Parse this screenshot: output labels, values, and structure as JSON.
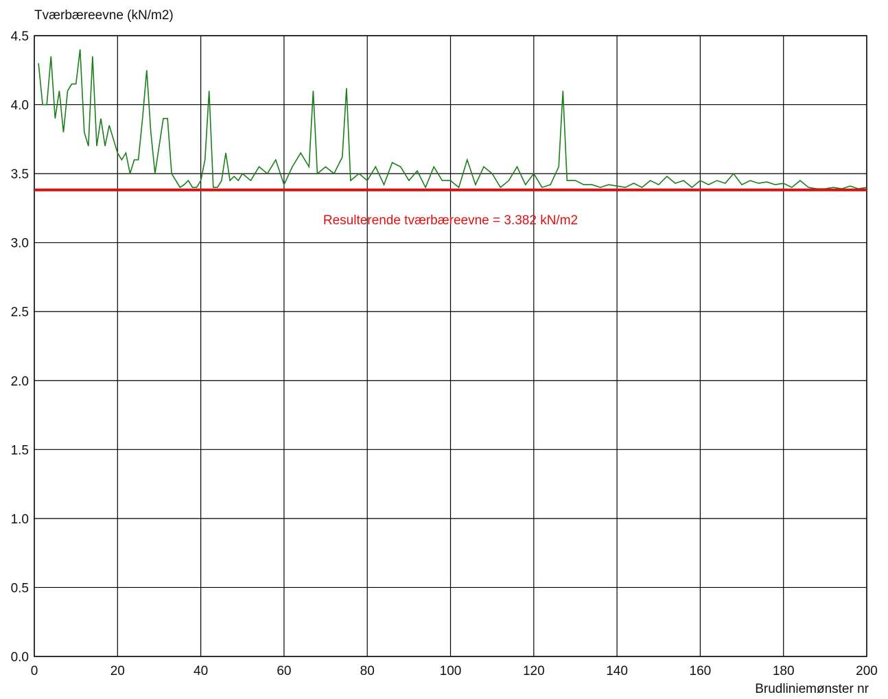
{
  "chart_data": {
    "type": "line",
    "ylabel": "Tværbæreevne (kN/m2)",
    "xlabel": "Brudliniemønster nr",
    "xlim": [
      0,
      200
    ],
    "ylim": [
      0,
      4.5
    ],
    "xticks": [
      0,
      20,
      40,
      60,
      80,
      100,
      120,
      140,
      160,
      180,
      200
    ],
    "yticks": [
      "0.0",
      "0.5",
      "1.0",
      "1.5",
      "2.0",
      "2.5",
      "3.0",
      "3.5",
      "4.0",
      "4.5"
    ],
    "grid": true,
    "colors": {
      "series": "#1a7f1a",
      "reference": "#e01010",
      "grid": "#000000"
    },
    "reference_line": {
      "y": 3.382,
      "label": "Resulterende tværbæreevne = 3.382 kN/m2"
    },
    "series": [
      {
        "x": [
          1,
          2,
          3,
          4,
          5,
          6,
          7,
          8,
          9,
          10,
          11,
          12,
          13,
          14,
          15,
          16,
          17,
          18,
          19,
          20,
          21,
          22,
          23,
          24,
          25,
          26,
          27,
          28,
          29,
          30,
          31,
          32,
          33,
          34,
          35,
          36,
          37,
          38,
          39,
          40,
          41,
          42,
          43,
          44,
          45,
          46,
          47,
          48,
          49,
          50,
          52,
          54,
          56,
          58,
          60,
          62,
          64,
          66,
          67,
          68,
          70,
          72,
          74,
          75,
          76,
          78,
          80,
          82,
          84,
          86,
          88,
          90,
          92,
          94,
          96,
          98,
          100,
          102,
          104,
          106,
          108,
          110,
          112,
          114,
          116,
          118,
          120,
          122,
          124,
          126,
          127,
          128,
          130,
          132,
          134,
          136,
          138,
          140,
          142,
          144,
          146,
          148,
          150,
          152,
          154,
          156,
          158,
          160,
          162,
          164,
          166,
          168,
          170,
          172,
          174,
          176,
          178,
          180,
          182,
          184,
          186,
          188,
          190,
          192,
          194,
          196,
          198,
          200
        ],
        "y": [
          4.3,
          4.0,
          4.0,
          4.35,
          3.9,
          4.1,
          3.8,
          4.1,
          4.15,
          4.15,
          4.4,
          3.8,
          3.7,
          4.35,
          3.7,
          3.9,
          3.7,
          3.85,
          3.75,
          3.65,
          3.6,
          3.65,
          3.5,
          3.6,
          3.6,
          3.9,
          4.25,
          3.8,
          3.5,
          3.7,
          3.9,
          3.9,
          3.5,
          3.45,
          3.4,
          3.42,
          3.45,
          3.4,
          3.4,
          3.45,
          3.6,
          4.1,
          3.4,
          3.4,
          3.45,
          3.65,
          3.45,
          3.48,
          3.45,
          3.5,
          3.45,
          3.55,
          3.5,
          3.6,
          3.42,
          3.55,
          3.65,
          3.55,
          4.1,
          3.5,
          3.55,
          3.5,
          3.62,
          4.12,
          3.45,
          3.5,
          3.45,
          3.55,
          3.42,
          3.58,
          3.55,
          3.45,
          3.52,
          3.4,
          3.55,
          3.45,
          3.45,
          3.4,
          3.6,
          3.42,
          3.55,
          3.5,
          3.4,
          3.45,
          3.55,
          3.42,
          3.5,
          3.4,
          3.42,
          3.55,
          4.1,
          3.45,
          3.45,
          3.42,
          3.42,
          3.4,
          3.42,
          3.41,
          3.4,
          3.43,
          3.4,
          3.45,
          3.42,
          3.48,
          3.43,
          3.45,
          3.4,
          3.45,
          3.42,
          3.45,
          3.43,
          3.5,
          3.42,
          3.45,
          3.43,
          3.44,
          3.42,
          3.43,
          3.4,
          3.45,
          3.4,
          3.39,
          3.39,
          3.4,
          3.39,
          3.41,
          3.39,
          3.4
        ]
      }
    ]
  }
}
